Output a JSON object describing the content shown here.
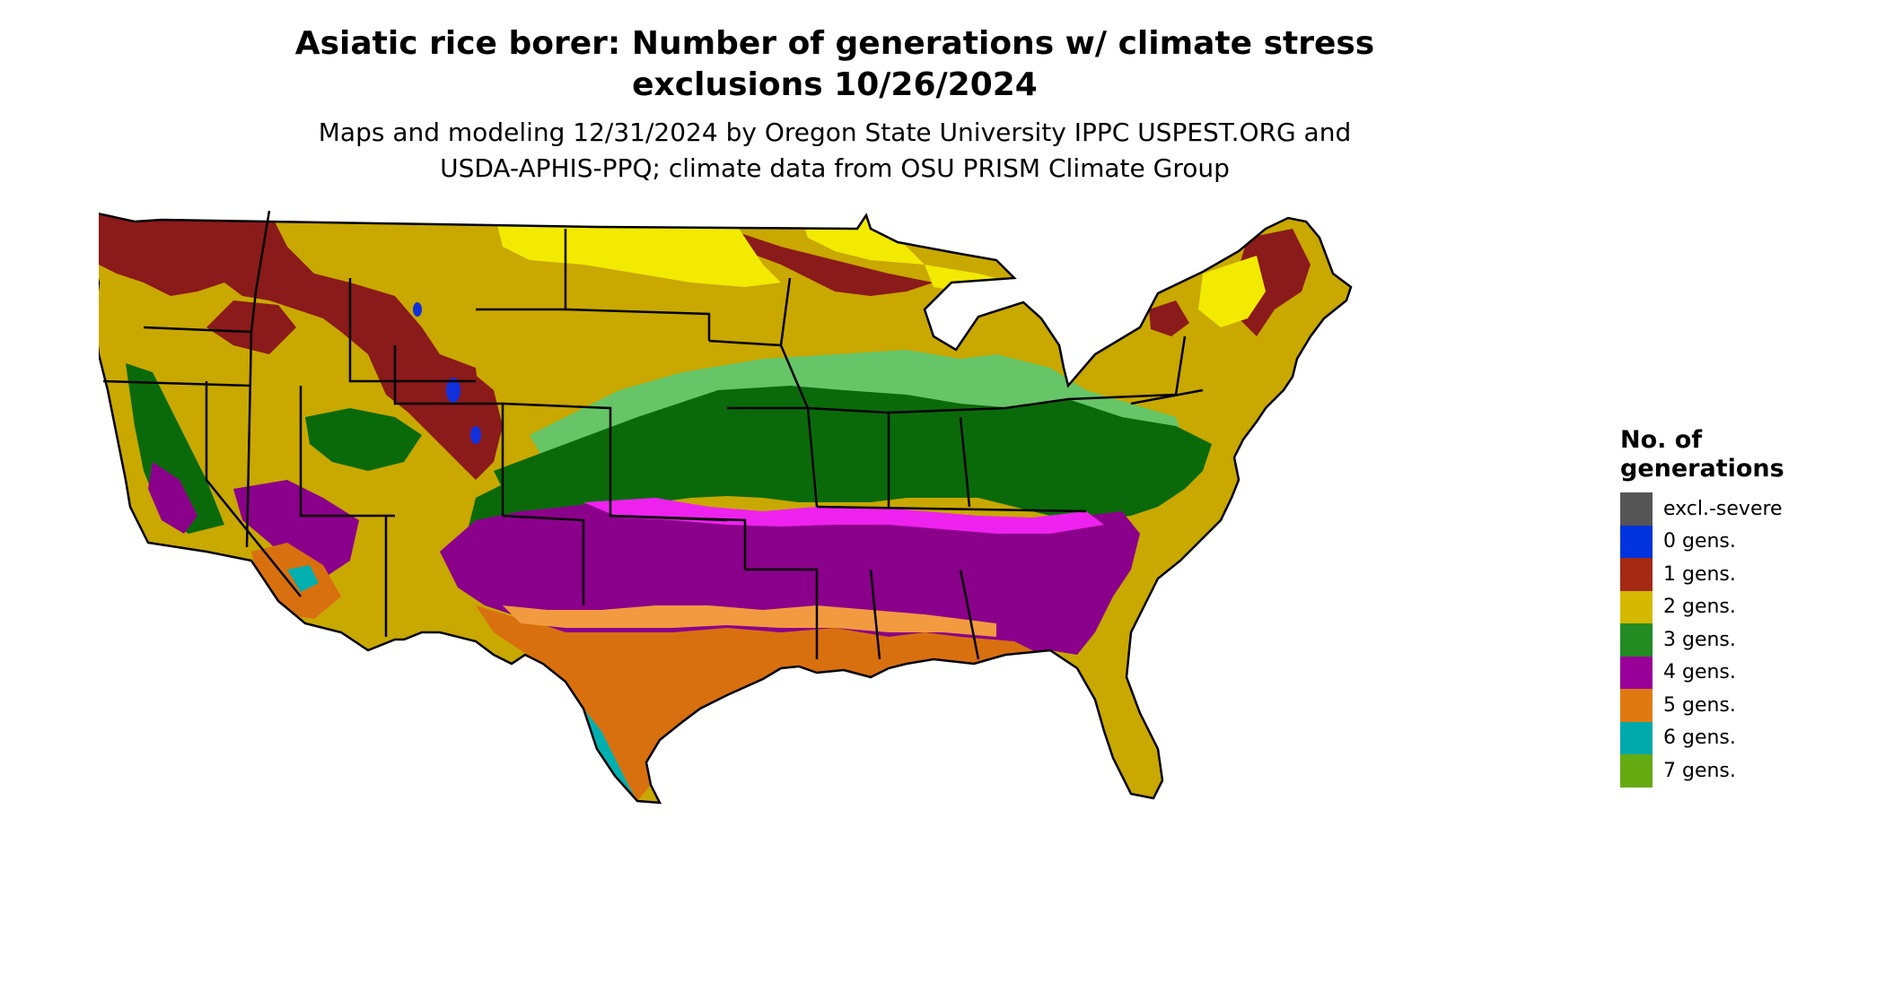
{
  "title_line1": "Asiatic rice borer: Number of generations w/ climate stress",
  "title_line2": "exclusions 10/26/2024",
  "subtitle_line1": "Maps and modeling 12/31/2024 by Oregon State University IPPC USPEST.ORG and",
  "subtitle_line2": "USDA-APHIS-PPQ; climate data from OSU PRISM Climate Group",
  "legend": {
    "title_line1": "No. of",
    "title_line2": "generations",
    "items": [
      {
        "label": "excl.-severe",
        "color": "#555555"
      },
      {
        "label": "0 gens.",
        "color": "#0033dd"
      },
      {
        "label": "1 gens.",
        "color": "#a52a14"
      },
      {
        "label": "2 gens.",
        "color": "#d4b900"
      },
      {
        "label": "3 gens.",
        "color": "#228b22"
      },
      {
        "label": "4 gens.",
        "color": "#990099"
      },
      {
        "label": "5 gens.",
        "color": "#e07a10"
      },
      {
        "label": "6 gens.",
        "color": "#00aaaa"
      },
      {
        "label": "7 gens.",
        "color": "#66aa11"
      }
    ]
  },
  "map_colors": {
    "gen1": "#8b1a1a",
    "gen2": "#c9a800",
    "gen2_bright": "#f2ea00",
    "gen3": "#0a6a0a",
    "gen3_light": "#66c566",
    "gen4": "#8b008b",
    "gen4_bright": "#ee22ee",
    "gen5": "#d97010",
    "gen5_light": "#f29a40",
    "gen6": "#00b0b0",
    "gen0": "#1030dd",
    "border": "#000000"
  }
}
